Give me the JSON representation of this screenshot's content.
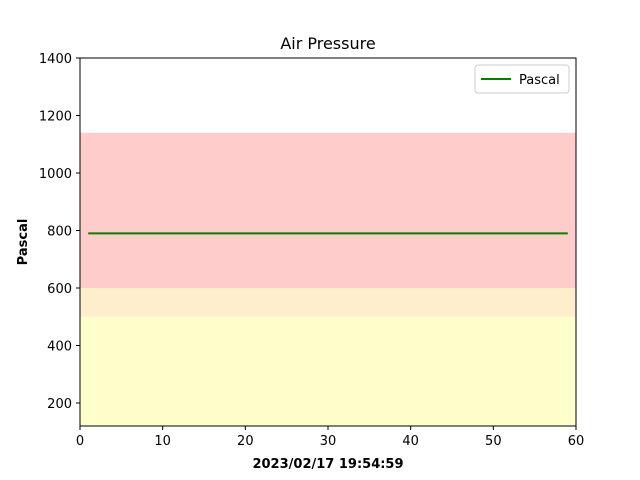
{
  "chart_data": {
    "type": "line",
    "title": "Air Pressure",
    "xlabel": "2023/02/17 19:54:59",
    "ylabel": "Pascal",
    "xlim": [
      0,
      60
    ],
    "ylim": [
      120,
      1400
    ],
    "x_ticks": [
      0,
      10,
      20,
      30,
      40,
      50,
      60
    ],
    "y_ticks": [
      200,
      400,
      600,
      800,
      1000,
      1200,
      1400
    ],
    "grid": false,
    "legend_position": "top-right",
    "bands": [
      {
        "y0": 120,
        "y1": 500,
        "color": "#ffffcc"
      },
      {
        "y0": 500,
        "y1": 600,
        "color": "#ffeecc"
      },
      {
        "y0": 600,
        "y1": 1140,
        "color": "#ffcccc"
      }
    ],
    "series": [
      {
        "name": "Pascal",
        "color": "#008000",
        "x": [
          1,
          59
        ],
        "y": [
          790,
          790
        ]
      }
    ]
  }
}
